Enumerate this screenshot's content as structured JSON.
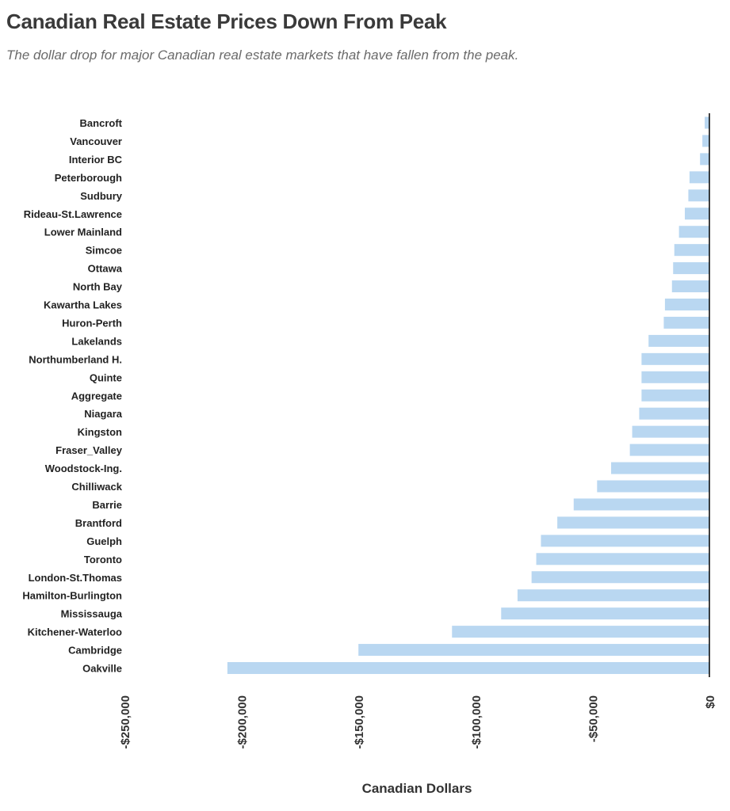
{
  "chart_data": {
    "type": "bar",
    "orientation": "horizontal",
    "title": "Canadian Real Estate Prices Down From Peak",
    "subtitle": "The dollar drop for major Canadian real estate markets that have fallen from the peak.",
    "xlabel": "Canadian Dollars",
    "ylabel": "",
    "xlim": [
      -250000,
      0
    ],
    "xticks": [
      -250000,
      -200000,
      -150000,
      -100000,
      -50000,
      0
    ],
    "xtick_labels": [
      "-$250,000",
      "-$200,000",
      "-$150,000",
      "-$100,000",
      "-$50,000",
      "$0"
    ],
    "categories": [
      "Bancroft",
      "Vancouver",
      "Interior BC",
      "Peterborough",
      "Sudbury",
      "Rideau-St.Lawrence",
      "Lower Mainland",
      "Simcoe",
      "Ottawa",
      "North Bay",
      "Kawartha Lakes",
      "Huron-Perth",
      "Lakelands",
      "Northumberland H.",
      "Quinte",
      "Aggregate",
      "Niagara",
      "Kingston",
      "Fraser_Valley",
      "Woodstock-Ing.",
      "Chilliwack",
      "Barrie",
      "Brantford",
      "Guelph",
      "Toronto",
      "London-St.Thomas",
      "Hamilton-Burlington",
      "Mississauga",
      "Kitchener-Waterloo",
      "Cambridge",
      "Oakville"
    ],
    "values": [
      -2000,
      -3000,
      -4000,
      -8500,
      -9000,
      -10500,
      -13000,
      -15000,
      -15500,
      -16000,
      -19000,
      -19500,
      -26000,
      -29000,
      -29000,
      -29000,
      -30000,
      -33000,
      -34000,
      -42000,
      -48000,
      -58000,
      -65000,
      -72000,
      -74000,
      -76000,
      -82000,
      -89000,
      -110000,
      -150000,
      -206000
    ],
    "bar_color": "#b9d7f1",
    "axis_color": "#000000",
    "grid": false
  }
}
